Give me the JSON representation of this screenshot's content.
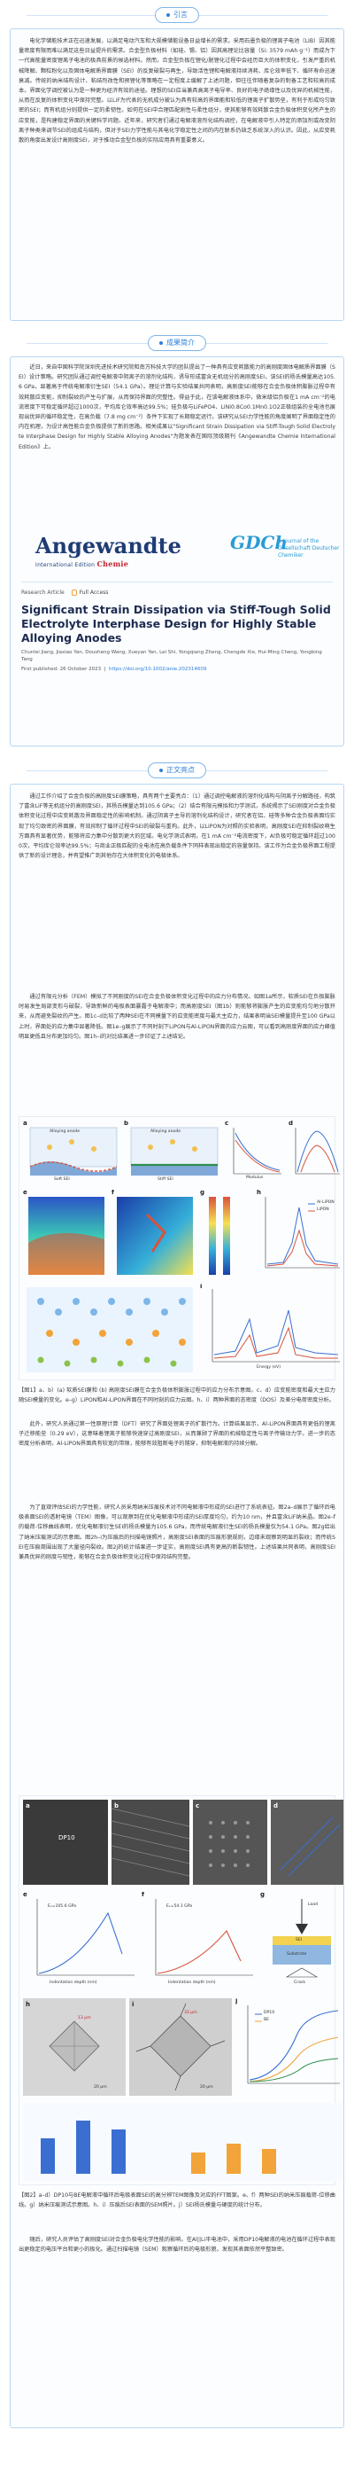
{
  "sec1": {
    "label": "引言"
  },
  "intro": "电化学储能技术正在迅速发展，以满足电动汽车和大规模储能设备日益增长的需求。采用石墨负极的锂离子电池（LIB）因其能量密度有限而难以满足这些日益提升的需求。合金型负极材料（如硅、锡、铝）因其高理论比容量（Si: 3579 mAh g⁻¹）而成为下一代高能量密度锂离子电池的极具前景的候选材料。然而，合金型负极在锂化/脱锂化过程中会经历巨大的体积变化，引发严重的机械降解、颗粒粉化以及固体电解质界面膜（SEI）的反复破裂与再生，导致活性锂和电解液持续消耗、库仑效率低下、循环寿命迅速衰减。传统的纳米结构设计、粘结剂改性和预锂化等策略在一定程度上缓解了上述问题，但往往伴随着复杂的制备工艺和较高的成本。界面化学调控被认为是一种更为经济有效的途径。理想的SEI应当兼具高离子电导率、良好的电子绝缘性以及优异的机械性能，从而在反复的体积变化中保持完整。以LiF为代表的无机成分被认为具有较高的界面能和较低的锂离子扩散势垒，有利于形成均匀致密的SEI；而有机组分则提供一定的柔韧性。如何在SEI中合理匹配刚性与柔性组分，使其能够有效耗散合金负极体积变化所产生的应变能，是构建稳定界面的关键科学问题。近年来，研究者们通过电解液溶剂化结构调控，在电解液中引入特定的添加剂或改变阴离子种类来调节SEI的组成与结构，但对于SEI力学性能与其电化学稳定性之间的内在联系仍缺乏系统深入的认识。因此，从应变耗散的角度出发设计高刚度SEI，对于推动合金型负极的实际应用具有重要意义。",
  "sec2": {
    "label": "成果简介"
  },
  "summary": "近日，来自中国科学院深圳先进技术研究院和南方科技大学的团队提出了一种具有应变耗散能力的高刚度固体电解质界面膜（SEI）设计策略。研究团队通过调控电解液中阴离子的溶剂化结构，诱导形成富含无机组分的高刚度SEI，该SEI的杨氏模量高达105.6 GPa，显著高于传统电解液衍生SEI（54.1 GPa）。理论计算与实验结果共同表明，高刚度SEI能够在合金负极体积膨胀过程中有效耗散应变能，抑制裂纹的产生与扩展，从而保持界面的完整性。得益于此，在该电解液体系中，微米级铝负极在1 mA cm⁻²的电流密度下可稳定循环超过1000次，平均库仑效率高达99.5%；硅负极与LiFePO4、LiNi0.8Co0.1Mn0.1O2正极组装的全电池也展现出优异的循环稳定性，在高负载（7.8 mg cm⁻²）条件下实现了长期稳定运行。该研究从SEI力学性能的角度阐明了界面稳定性的内在机理，为设计高性能合金负极提供了新的思路。相关成果以\"Significant Strain Dissipation via Stiff-Tough Solid Electrolyte Interphase Design for Highly Stable Alloying Anodes\"为题发表在国际顶级期刊《Angewandte Chemie International Edition》上。",
  "journal": {
    "brand": "Angewandte",
    "brand2": "Chemie",
    "edition_prefix": "International Edition",
    "society": "A Journal of the Gesellschaft Deutscher Chemiker",
    "gdch": "GDCh"
  },
  "article": {
    "type": "Research Article",
    "access": "Full Access",
    "title": "Significant Strain Dissipation via Stiff-Tough Solid Electrolyte Interphase Design for Highly Stable Alloying Anodes",
    "authors": "Chunlei Jiang, Jiaxiao Yan, Dousheng Wang, Xueyan Yan, Lei Shi, Yongqiang Zheng, Chengde Xie, Hui-Ming Cheng, Yongbing Tang",
    "published": "First published: 26 October 2023",
    "doi": "https://doi.org/10.1002/anie.202314609"
  },
  "sec3": {
    "label": "正文亮点"
  },
  "body1": "通过工作介绍了合金负极的高刚度SEI膜策略，具有两个主要亮点：（1）通过调控电解液的溶剂化结构与阴离子分解路径，构筑了富含LiF等无机组分的高刚度SEI，其杨氏模量达到105.6 GPa；（2）结合有限元模拟和力学测试，系统揭示了SEI刚度对合金负极体积变化过程中应变耗散及界面稳定性的影响机制。通过阴离子主导的溶剂化结构设计，研究者在铝、硅等多种合金负极表面均实现了均匀致密的界面膜，有效抑制了循环过程中SEI的破裂与重构。此外，以LiPON为对照的实验表明，高刚度SEI在抑制裂纹萌生方面具有显著优势，能够将应力集中分散到更大的区域。电化学测试表明，在1 mA cm⁻²电流密度下，Al负极可稳定循环超过1000次，平均库仑效率达99.5%；与商业正极匹配的全电池在高负载条件下同样表现出稳定的容量保持。该工作为合金负极界面工程提供了新的设计理念，并有望推广到其他存在大体积变化的电极体系。",
  "body2": "通过有限元分析（FEM）模拟了不同刚度的SEI在合金负极体积变化过程中的应力分布情况。如图1a所示，软质SEI在负极膨胀时易发生局部变形与破裂，导致新鲜的电极表面暴露于电解液中；而高刚度SEI（图1b）则能够将膨胀产生的应变能均匀地分散开来，从而避免裂纹的产生。图1c–d比较了两种SEI在不同模量下的应变能密度与最大主应力，结果表明当SEI模量提升至100 GPa以上时，界面处的应力集中显著降低。图1e–g展示了不同时刻下LiPON与Al-LiPON界面的应力云图，可以看到高刚度界面的应力峰值明显更低且分布更加均匀。图1h–i的对比结果进一步印证了上述结论。",
  "fig1": {
    "labels": [
      "a",
      "b",
      "c",
      "d",
      "e",
      "f",
      "g",
      "h",
      "i"
    ],
    "a_title": "Alloying anode",
    "b_title": "Alloying anode",
    "a_caption": "Soft SEI",
    "b_caption": "Stiff SEI",
    "legend_1": "Al-LiPON",
    "legend_2": "LiPON",
    "scale": "5 nm",
    "c_ylabel": "Strain energy",
    "c_xlabel": "Modulus",
    "d_ylabel": "Stress",
    "h_xlabel": "Energy (eV)",
    "i_ylabel": "DOS"
  },
  "cap1": "【图1】a、b）(a) 软质SEI膜和 (b) 高刚度SEI膜在合金负极体积膨胀过程中的应力分布示意图。c、d）应变能密度和最大主应力随SEI模量的变化。e–g）LiPON和Al-LiPON界面在不同时刻的应力云图。h、i）两种界面的态密度（DOS）及差分电荷密度分析。",
  "body3": "此外，研究人员通过第一性原理计算（DFT）研究了界面处锂离子的扩散行为。计算结果显示，Al-LiPON界面具有更低的锂离子迁移能垒（0.29 eV），这意味着锂离子能够快速穿过高刚度SEI，从而兼顾了界面的机械稳定性与离子传输动力学。进一步的态密度分析表明，Al-LiPON界面具有较宽的带隙，能够有效阻断电子的隧穿，抑制电解液的持续分解。",
  "body4": "为了直观评估SEI的力学性能，研究人员采用纳米压痕技术对不同电解液中形成的SEI进行了系统表征。图2a–d展示了循环后电极表面SEI的透射电镜（TEM）图像，可以观察到在优化电解液中形成的SEI厚度均匀，约为10 nm，并且富含LiF纳米晶。图2e–f的载荷-位移曲线表明，优化电解液衍生SEI的杨氏模量为105.6 GPa，而传统电解液衍生SEI的杨氏模量仅为54.1 GPa。图2g给出了纳米压痕测试的示意图。图2h–i为压痕后的扫描电镜照片，高刚度SEI表面的压痕形貌规则，边缘未观察到明显的裂纹；而传统SEI在压痕周围出现了大量径向裂纹。图2j的统计结果进一步证实，高刚度SEI具有更高的断裂韧性。上述结果共同表明，高刚度SEI兼具优异的刚度与韧性，能够在合金负极体积变化过程中保持结构完整。",
  "fig2": {
    "labels": [
      "a",
      "b",
      "c",
      "d",
      "e",
      "f",
      "g",
      "h",
      "i",
      "j"
    ],
    "a_tag": "DP10",
    "e_modulus": "Eₛ=105.6 GPa",
    "f_modulus": "Eₛ=54.1 GPa",
    "xlabel": "Indentation depth (nm)",
    "ylabel": "Load (mN)",
    "g_load": "Load",
    "g_sei": "SEI",
    "g_sub": "Substrate",
    "g_crack": "Crack",
    "h_scale": "20 μm",
    "h_marker": "13 μm",
    "i_scale": "20 μm",
    "i_marker": "33 μm",
    "j_legend_1": "DP10",
    "j_legend_2": "BE"
  },
  "cap2": "【图2】a–d）DP10与BE电解液中循环后电极表面SEI的高分辨TEM图像及对应的FFT图案。e、f）两种SEI的纳米压痕载荷-位移曲线。g）纳米压痕测试示意图。h、i）压痕后SEI表面的SEM照片。j）SEI杨氏模量与硬度的统计分布。",
  "body5": "随后，研究人员评估了高刚度SEI对合金负极电化学性能的影响。在Al||Li半电池中，采用DP10电解液的电池在循环过程中表现出更稳定的电压平台和更小的极化。通过扫描电镜（SEM）观察循环后的电极形貌，发现其表面依然平整致密。"
}
